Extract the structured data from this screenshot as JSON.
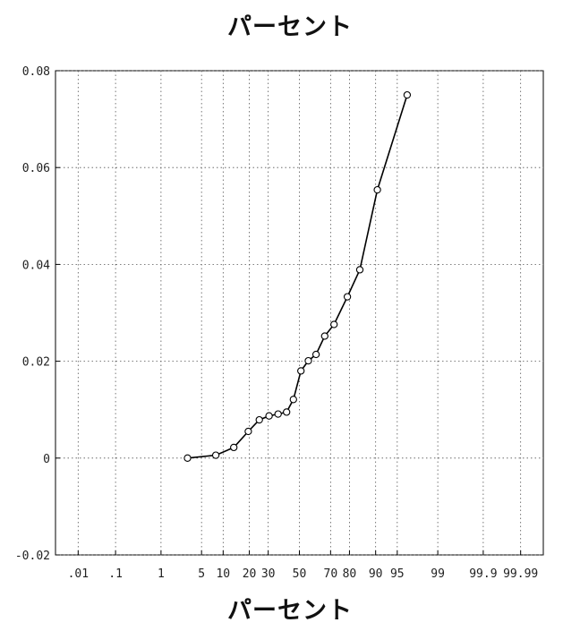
{
  "chart_data": {
    "type": "line",
    "title": "パーセント",
    "xlabel": "パーセント",
    "ylabel": "",
    "x_scale": "normal-probability (percent)",
    "grid": true,
    "ylim": [
      -0.02,
      0.08
    ],
    "y_ticks": [
      -0.02,
      0,
      0.02,
      0.04,
      0.06,
      0.08
    ],
    "y_tick_labels": [
      "-0.02",
      "0",
      "0.02",
      "0.04",
      "0.06",
      "0.08"
    ],
    "x_ticks": [
      0.01,
      0.1,
      1,
      5,
      10,
      20,
      30,
      50,
      70,
      80,
      90,
      95,
      99,
      99.9,
      99.99
    ],
    "x_tick_labels": [
      ".01",
      ".1",
      "1",
      "5",
      "10",
      "20",
      "30",
      "50",
      "70",
      "80",
      "90",
      "95",
      "99",
      "99.9",
      "99.99"
    ],
    "series": [
      {
        "x": [
          3.0,
          8.0,
          13.5,
          19.5,
          25.0,
          30.5,
          36.0,
          41.5,
          46.0,
          51.0,
          56.0,
          61.0,
          66.5,
          72.0,
          79.0,
          84.5,
          90.5,
          96.5
        ],
        "y": [
          0.0,
          0.0006,
          0.0022,
          0.0055,
          0.0079,
          0.0087,
          0.0091,
          0.0095,
          0.0121,
          0.018,
          0.0201,
          0.0214,
          0.0252,
          0.0276,
          0.0333,
          0.0389,
          0.0554,
          0.075
        ]
      }
    ],
    "colors": {
      "line": "#000000",
      "grid": "#555555",
      "frame": "#000000"
    }
  }
}
